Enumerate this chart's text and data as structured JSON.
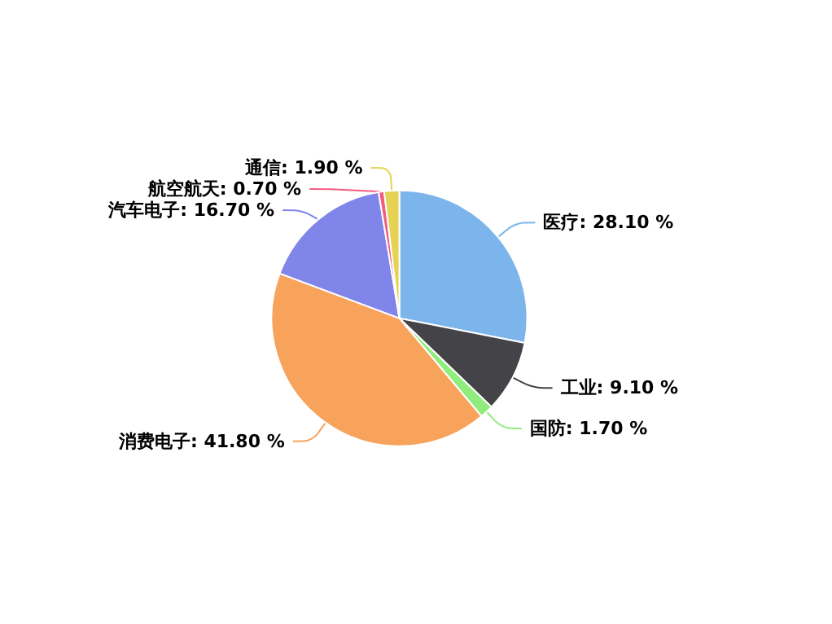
{
  "chart_data": {
    "type": "pie",
    "categories": [
      "医疗",
      "工业",
      "国防",
      "消费电子",
      "汽车电子",
      "航空航天",
      "通信"
    ],
    "values": [
      28.1,
      9.1,
      1.7,
      41.8,
      16.7,
      0.7,
      1.9
    ],
    "value_labels": [
      "28.10 %",
      "9.10 %",
      "1.70 %",
      "41.80 %",
      "16.70 %",
      "0.70 %",
      "1.90 %"
    ],
    "colors": [
      "#7cb5ec",
      "#434348",
      "#90ed7d",
      "#f7a35c",
      "#8085e9",
      "#f15c80",
      "#e4d354"
    ],
    "legend": false
  }
}
